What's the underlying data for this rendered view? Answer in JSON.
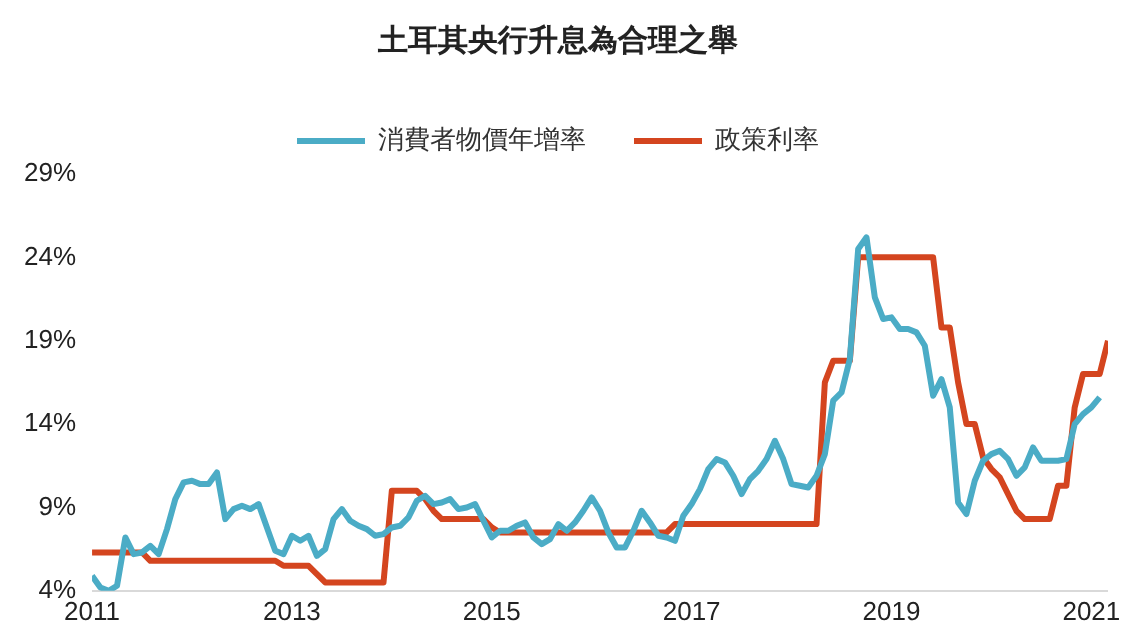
{
  "chart_data": {
    "type": "line",
    "title": "土耳其央行升息為合理之舉",
    "xlim": [
      "2011-01",
      "2021-03"
    ],
    "xticks": [
      "2011",
      "2013",
      "2015",
      "2017",
      "2019",
      "2021"
    ],
    "ylim": [
      4,
      29
    ],
    "yticks": [
      {
        "value": 4,
        "label": "4%"
      },
      {
        "value": 9,
        "label": "9%"
      },
      {
        "value": 14,
        "label": "14%"
      },
      {
        "value": 19,
        "label": "19%"
      },
      {
        "value": 24,
        "label": "24%"
      },
      {
        "value": 29,
        "label": "29%"
      }
    ],
    "grid": false,
    "legend": "top",
    "marker": "none",
    "line_style": "solid",
    "series": [
      {
        "name": "消費者物價年增率",
        "color": "#4bacc6",
        "x": [
          "2011-01",
          "2011-02",
          "2011-03",
          "2011-04",
          "2011-05",
          "2011-06",
          "2011-07",
          "2011-08",
          "2011-09",
          "2011-10",
          "2011-11",
          "2011-12",
          "2012-01",
          "2012-02",
          "2012-03",
          "2012-04",
          "2012-05",
          "2012-06",
          "2012-07",
          "2012-08",
          "2012-09",
          "2012-10",
          "2012-11",
          "2012-12",
          "2013-01",
          "2013-02",
          "2013-03",
          "2013-04",
          "2013-05",
          "2013-06",
          "2013-07",
          "2013-08",
          "2013-09",
          "2013-10",
          "2013-11",
          "2013-12",
          "2014-01",
          "2014-02",
          "2014-03",
          "2014-04",
          "2014-05",
          "2014-06",
          "2014-07",
          "2014-08",
          "2014-09",
          "2014-10",
          "2014-11",
          "2014-12",
          "2015-01",
          "2015-02",
          "2015-03",
          "2015-04",
          "2015-05",
          "2015-06",
          "2015-07",
          "2015-08",
          "2015-09",
          "2015-10",
          "2015-11",
          "2015-12",
          "2016-01",
          "2016-02",
          "2016-03",
          "2016-04",
          "2016-05",
          "2016-06",
          "2016-07",
          "2016-08",
          "2016-09",
          "2016-10",
          "2016-11",
          "2016-12",
          "2017-01",
          "2017-02",
          "2017-03",
          "2017-04",
          "2017-05",
          "2017-06",
          "2017-07",
          "2017-08",
          "2017-09",
          "2017-10",
          "2017-11",
          "2017-12",
          "2018-01",
          "2018-02",
          "2018-03",
          "2018-04",
          "2018-05",
          "2018-06",
          "2018-07",
          "2018-08",
          "2018-09",
          "2018-10",
          "2018-11",
          "2018-12",
          "2019-01",
          "2019-02",
          "2019-03",
          "2019-04",
          "2019-05",
          "2019-06",
          "2019-07",
          "2019-08",
          "2019-09",
          "2019-10",
          "2019-11",
          "2019-12",
          "2020-01",
          "2020-02",
          "2020-03",
          "2020-04",
          "2020-05",
          "2020-06",
          "2020-07",
          "2020-08",
          "2020-09",
          "2020-10",
          "2020-11",
          "2020-12",
          "2021-01",
          "2021-02"
        ],
        "values": [
          4.9,
          4.2,
          4.0,
          4.3,
          7.2,
          6.2,
          6.3,
          6.7,
          6.2,
          7.7,
          9.5,
          10.5,
          10.6,
          10.4,
          10.4,
          11.1,
          8.3,
          8.9,
          9.1,
          8.9,
          9.2,
          7.8,
          6.4,
          6.2,
          7.3,
          7.0,
          7.3,
          6.1,
          6.5,
          8.3,
          8.9,
          8.2,
          7.9,
          7.7,
          7.3,
          7.4,
          7.8,
          7.9,
          8.4,
          9.4,
          9.7,
          9.2,
          9.3,
          9.5,
          8.9,
          9.0,
          9.2,
          8.2,
          7.2,
          7.6,
          7.6,
          7.9,
          8.1,
          7.2,
          6.8,
          7.1,
          8.0,
          7.6,
          8.1,
          8.8,
          9.6,
          8.8,
          7.5,
          6.6,
          6.6,
          7.6,
          8.8,
          8.1,
          7.3,
          7.2,
          7.0,
          8.5,
          9.2,
          10.1,
          11.3,
          11.9,
          11.7,
          10.9,
          9.8,
          10.7,
          11.2,
          11.9,
          13.0,
          11.9,
          10.4,
          10.3,
          10.2,
          10.9,
          12.2,
          15.4,
          15.9,
          17.9,
          24.5,
          25.2,
          21.6,
          20.3,
          20.4,
          19.7,
          19.7,
          19.5,
          18.7,
          15.7,
          16.7,
          15.0,
          9.3,
          8.6,
          10.6,
          11.8,
          12.2,
          12.4,
          11.9,
          10.9,
          11.4,
          12.6,
          11.8,
          11.8,
          11.8,
          11.9,
          14.0,
          14.6,
          15.0,
          15.6
        ]
      },
      {
        "name": "政策利率",
        "color": "#d4451f",
        "x": [
          "2011-01",
          "2011-02",
          "2011-03",
          "2011-04",
          "2011-05",
          "2011-06",
          "2011-07",
          "2011-08",
          "2011-09",
          "2011-10",
          "2011-11",
          "2011-12",
          "2012-01",
          "2012-02",
          "2012-03",
          "2012-04",
          "2012-05",
          "2012-06",
          "2012-07",
          "2012-08",
          "2012-09",
          "2012-10",
          "2012-11",
          "2012-12",
          "2013-01",
          "2013-02",
          "2013-03",
          "2013-04",
          "2013-05",
          "2013-06",
          "2013-07",
          "2013-08",
          "2013-09",
          "2013-10",
          "2013-11",
          "2013-12",
          "2014-01",
          "2014-02",
          "2014-03",
          "2014-04",
          "2014-05",
          "2014-06",
          "2014-07",
          "2014-08",
          "2014-09",
          "2014-10",
          "2014-11",
          "2014-12",
          "2015-01",
          "2015-02",
          "2015-03",
          "2015-04",
          "2015-05",
          "2015-06",
          "2015-07",
          "2015-08",
          "2015-09",
          "2015-10",
          "2015-11",
          "2015-12",
          "2016-01",
          "2016-02",
          "2016-03",
          "2016-04",
          "2016-05",
          "2016-06",
          "2016-07",
          "2016-08",
          "2016-09",
          "2016-10",
          "2016-11",
          "2016-12",
          "2017-01",
          "2017-02",
          "2017-03",
          "2017-04",
          "2017-05",
          "2017-06",
          "2017-07",
          "2017-08",
          "2017-09",
          "2017-10",
          "2017-11",
          "2017-12",
          "2018-01",
          "2018-02",
          "2018-03",
          "2018-04",
          "2018-05",
          "2018-06",
          "2018-07",
          "2018-08",
          "2018-09",
          "2018-10",
          "2018-11",
          "2018-12",
          "2019-01",
          "2019-02",
          "2019-03",
          "2019-04",
          "2019-05",
          "2019-06",
          "2019-07",
          "2019-08",
          "2019-09",
          "2019-10",
          "2019-11",
          "2019-12",
          "2020-01",
          "2020-02",
          "2020-03",
          "2020-04",
          "2020-05",
          "2020-06",
          "2020-07",
          "2020-08",
          "2020-09",
          "2020-10",
          "2020-11",
          "2020-12",
          "2021-01",
          "2021-02",
          "2021-03"
        ],
        "values": [
          6.3,
          6.3,
          6.3,
          6.3,
          6.3,
          6.3,
          6.3,
          5.8,
          5.8,
          5.8,
          5.8,
          5.8,
          5.8,
          5.8,
          5.8,
          5.8,
          5.8,
          5.8,
          5.8,
          5.8,
          5.8,
          5.8,
          5.8,
          5.5,
          5.5,
          5.5,
          5.5,
          5.0,
          4.5,
          4.5,
          4.5,
          4.5,
          4.5,
          4.5,
          4.5,
          4.5,
          10,
          10,
          10,
          10,
          9.5,
          8.8,
          8.3,
          8.3,
          8.3,
          8.3,
          8.3,
          8.3,
          7.8,
          7.5,
          7.5,
          7.5,
          7.5,
          7.5,
          7.5,
          7.5,
          7.5,
          7.5,
          7.5,
          7.5,
          7.5,
          7.5,
          7.5,
          7.5,
          7.5,
          7.5,
          7.5,
          7.5,
          7.5,
          7.5,
          8,
          8,
          8,
          8,
          8,
          8,
          8,
          8,
          8,
          8,
          8,
          8,
          8,
          8,
          8,
          8,
          8,
          8,
          16.5,
          17.8,
          17.8,
          17.8,
          24,
          24,
          24,
          24,
          24,
          24,
          24,
          24,
          24,
          24,
          19.8,
          19.8,
          16.5,
          14,
          14,
          12,
          11.3,
          10.8,
          9.8,
          8.8,
          8.3,
          8.3,
          8.3,
          8.3,
          10.3,
          10.3,
          15,
          17,
          17,
          17,
          19
        ]
      }
    ]
  }
}
